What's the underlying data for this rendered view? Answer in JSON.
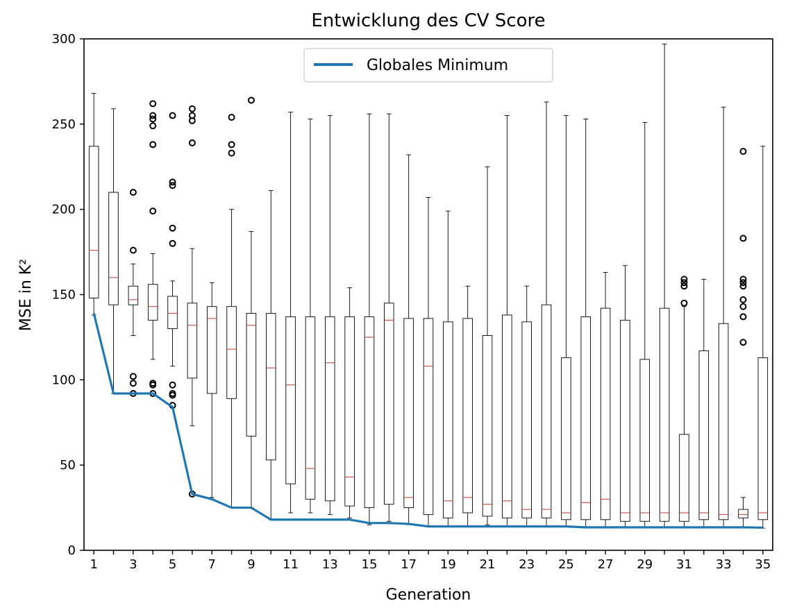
{
  "chart_data": {
    "type": "box",
    "title": "Entwicklung des CV Score",
    "xlabel": "Generation",
    "ylabel": "MSE in K²",
    "ylim": [
      0,
      300
    ],
    "yticks": [
      0,
      50,
      100,
      150,
      200,
      250,
      300
    ],
    "xlim": [
      0.5,
      35.5
    ],
    "xticks_labeled": [
      1,
      3,
      5,
      7,
      9,
      11,
      13,
      15,
      17,
      19,
      21,
      23,
      25,
      27,
      29,
      31,
      33,
      35
    ],
    "legend": {
      "placement": "top-center",
      "entries": [
        "Globales Minimum"
      ]
    },
    "grid": false,
    "colors": {
      "line": "#1f77b4",
      "median": "#c0392b",
      "box": "#000000"
    },
    "generations": [
      1,
      2,
      3,
      4,
      5,
      6,
      7,
      8,
      9,
      10,
      11,
      12,
      13,
      14,
      15,
      16,
      17,
      18,
      19,
      20,
      21,
      22,
      23,
      24,
      25,
      26,
      27,
      28,
      29,
      30,
      31,
      32,
      33,
      34,
      35
    ],
    "boxes": [
      {
        "gen": 1,
        "whislo": 138,
        "q1": 148,
        "med": 176,
        "q3": 237,
        "whishi": 268,
        "fliers": []
      },
      {
        "gen": 2,
        "whislo": 92,
        "q1": 144,
        "med": 160,
        "q3": 210,
        "whishi": 259,
        "fliers": []
      },
      {
        "gen": 3,
        "whislo": 126,
        "q1": 144,
        "med": 147,
        "q3": 155,
        "whishi": 168,
        "fliers": [
          92,
          98,
          102,
          176,
          210
        ]
      },
      {
        "gen": 4,
        "whislo": 112,
        "q1": 135,
        "med": 143,
        "q3": 156,
        "whishi": 174,
        "fliers": [
          92,
          97,
          98,
          199,
          238,
          249,
          253,
          255,
          262
        ]
      },
      {
        "gen": 5,
        "whislo": 108,
        "q1": 130,
        "med": 139,
        "q3": 149,
        "whishi": 158,
        "fliers": [
          85,
          91,
          92,
          97,
          180,
          189,
          214,
          216,
          255
        ]
      },
      {
        "gen": 6,
        "whislo": 73,
        "q1": 101,
        "med": 132,
        "q3": 145,
        "whishi": 177,
        "fliers": [
          33,
          239,
          252,
          255,
          259
        ]
      },
      {
        "gen": 7,
        "whislo": 31,
        "q1": 92,
        "med": 136,
        "q3": 143,
        "whishi": 157,
        "fliers": []
      },
      {
        "gen": 8,
        "whislo": 25,
        "q1": 89,
        "med": 118,
        "q3": 143,
        "whishi": 200,
        "fliers": [
          233,
          238,
          254
        ]
      },
      {
        "gen": 9,
        "whislo": 25,
        "q1": 67,
        "med": 132,
        "q3": 139,
        "whishi": 187,
        "fliers": [
          264
        ]
      },
      {
        "gen": 10,
        "whislo": 18,
        "q1": 53,
        "med": 107,
        "q3": 139,
        "whishi": 211,
        "fliers": []
      },
      {
        "gen": 11,
        "whislo": 22,
        "q1": 39,
        "med": 97,
        "q3": 137,
        "whishi": 257,
        "fliers": []
      },
      {
        "gen": 12,
        "whislo": 22,
        "q1": 30,
        "med": 48,
        "q3": 137,
        "whishi": 253,
        "fliers": []
      },
      {
        "gen": 13,
        "whislo": 21,
        "q1": 29,
        "med": 110,
        "q3": 137,
        "whishi": 255,
        "fliers": []
      },
      {
        "gen": 14,
        "whislo": 19,
        "q1": 26,
        "med": 43,
        "q3": 137,
        "whishi": 154,
        "fliers": []
      },
      {
        "gen": 15,
        "whislo": 15,
        "q1": 25,
        "med": 125,
        "q3": 137,
        "whishi": 256,
        "fliers": []
      },
      {
        "gen": 16,
        "whislo": 17,
        "q1": 27,
        "med": 135,
        "q3": 145,
        "whishi": 256,
        "fliers": []
      },
      {
        "gen": 17,
        "whislo": 15,
        "q1": 25,
        "med": 31,
        "q3": 136,
        "whishi": 232,
        "fliers": []
      },
      {
        "gen": 18,
        "whislo": 14,
        "q1": 21,
        "med": 108,
        "q3": 136,
        "whishi": 207,
        "fliers": []
      },
      {
        "gen": 19,
        "whislo": 14,
        "q1": 19,
        "med": 29,
        "q3": 134,
        "whishi": 199,
        "fliers": []
      },
      {
        "gen": 20,
        "whislo": 14,
        "q1": 22,
        "med": 31,
        "q3": 136,
        "whishi": 155,
        "fliers": []
      },
      {
        "gen": 21,
        "whislo": 15,
        "q1": 20,
        "med": 27,
        "q3": 126,
        "whishi": 225,
        "fliers": []
      },
      {
        "gen": 22,
        "whislo": 14,
        "q1": 19,
        "med": 29,
        "q3": 138,
        "whishi": 255,
        "fliers": []
      },
      {
        "gen": 23,
        "whislo": 14,
        "q1": 19,
        "med": 24,
        "q3": 134,
        "whishi": 155,
        "fliers": []
      },
      {
        "gen": 24,
        "whislo": 14,
        "q1": 19,
        "med": 24,
        "q3": 144,
        "whishi": 263,
        "fliers": []
      },
      {
        "gen": 25,
        "whislo": 14,
        "q1": 18,
        "med": 22,
        "q3": 113,
        "whishi": 255,
        "fliers": []
      },
      {
        "gen": 26,
        "whislo": 13,
        "q1": 18,
        "med": 28,
        "q3": 137,
        "whishi": 253,
        "fliers": []
      },
      {
        "gen": 27,
        "whislo": 13,
        "q1": 18,
        "med": 30,
        "q3": 142,
        "whishi": 163,
        "fliers": []
      },
      {
        "gen": 28,
        "whislo": 13,
        "q1": 17,
        "med": 22,
        "q3": 135,
        "whishi": 167,
        "fliers": []
      },
      {
        "gen": 29,
        "whislo": 13,
        "q1": 17,
        "med": 22,
        "q3": 112,
        "whishi": 251,
        "fliers": []
      },
      {
        "gen": 30,
        "whislo": 13,
        "q1": 17,
        "med": 22,
        "q3": 142,
        "whishi": 297,
        "fliers": []
      },
      {
        "gen": 31,
        "whislo": 13,
        "q1": 17,
        "med": 22,
        "q3": 68,
        "whishi": 143,
        "fliers": [
          145,
          155,
          157,
          159
        ]
      },
      {
        "gen": 32,
        "whislo": 13,
        "q1": 18,
        "med": 22,
        "q3": 117,
        "whishi": 159,
        "fliers": []
      },
      {
        "gen": 33,
        "whislo": 13,
        "q1": 18,
        "med": 21,
        "q3": 133,
        "whishi": 260,
        "fliers": []
      },
      {
        "gen": 34,
        "whislo": 13,
        "q1": 19,
        "med": 21,
        "q3": 24,
        "whishi": 31,
        "fliers": [
          122,
          137,
          143,
          147,
          155,
          157,
          159,
          183,
          234
        ]
      },
      {
        "gen": 35,
        "whislo": 13,
        "q1": 18,
        "med": 22,
        "q3": 113,
        "whishi": 237,
        "fliers": []
      }
    ],
    "series": [
      {
        "name": "Globales Minimum",
        "x": [
          1,
          2,
          3,
          4,
          5,
          6,
          7,
          8,
          9,
          10,
          11,
          12,
          13,
          14,
          15,
          16,
          17,
          18,
          19,
          20,
          21,
          22,
          23,
          24,
          25,
          26,
          27,
          28,
          29,
          30,
          31,
          32,
          33,
          34,
          35
        ],
        "values": [
          139,
          92,
          92,
          92,
          84,
          33,
          30,
          25,
          25,
          18,
          18,
          18,
          18,
          18,
          16,
          16,
          15.5,
          14,
          14,
          14,
          14,
          14,
          14,
          14,
          14,
          13.5,
          13.5,
          13.5,
          13.5,
          13.5,
          13.5,
          13.5,
          13.5,
          13.5,
          13.3
        ]
      }
    ]
  }
}
